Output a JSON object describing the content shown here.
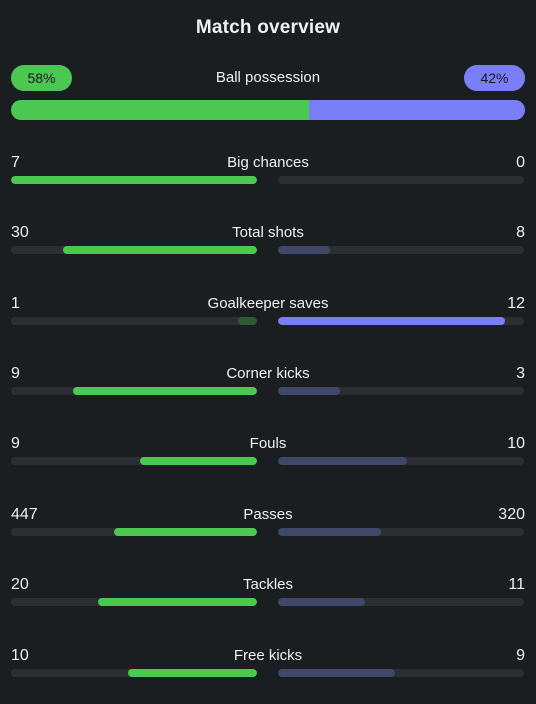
{
  "title": "Match overview",
  "colors": {
    "home_strong": "#4cc752",
    "home_weak": "#2e5a33",
    "away_strong": "#7b7ff7",
    "away_weak": "#3f4869",
    "track": "#2b2f33"
  },
  "possession": {
    "label": "Ball possession",
    "home_text": "58%",
    "away_text": "42%",
    "home": 58,
    "away": 42
  },
  "stats": [
    {
      "label": "Big chances",
      "home": "7",
      "away": "0",
      "home_value": 7,
      "away_value": 0,
      "leader": "home"
    },
    {
      "label": "Total shots",
      "home": "30",
      "away": "8",
      "home_value": 30,
      "away_value": 8,
      "leader": "home"
    },
    {
      "label": "Goalkeeper saves",
      "home": "1",
      "away": "12",
      "home_value": 1,
      "away_value": 12,
      "leader": "away"
    },
    {
      "label": "Corner kicks",
      "home": "9",
      "away": "3",
      "home_value": 9,
      "away_value": 3,
      "leader": "home"
    },
    {
      "label": "Fouls",
      "home": "9",
      "away": "10",
      "home_value": 9,
      "away_value": 10,
      "leader": "home"
    },
    {
      "label": "Passes",
      "home": "447",
      "away": "320",
      "home_value": 447,
      "away_value": 320,
      "leader": "home"
    },
    {
      "label": "Tackles",
      "home": "20",
      "away": "11",
      "home_value": 20,
      "away_value": 11,
      "leader": "home"
    },
    {
      "label": "Free kicks",
      "home": "10",
      "away": "9",
      "home_value": 10,
      "away_value": 9,
      "leader": "home"
    }
  ]
}
